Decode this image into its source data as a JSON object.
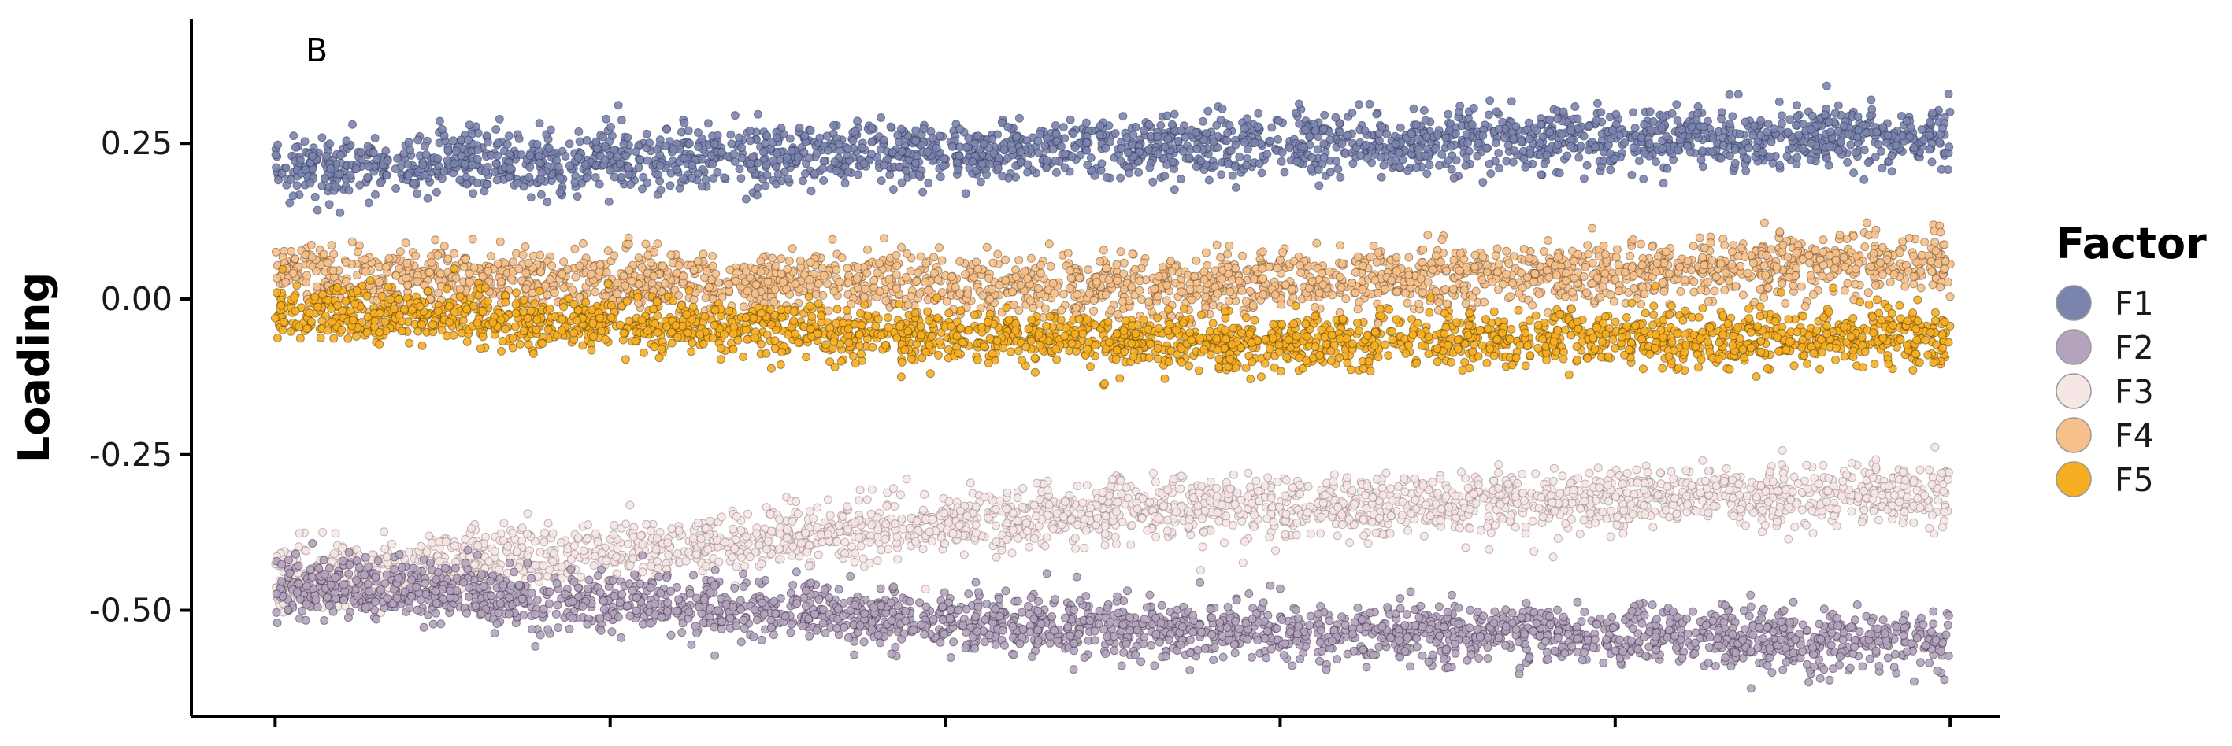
{
  "chart_data": {
    "type": "scatter",
    "panel_tag": "B",
    "ylabel": "Loading",
    "xlabel": "",
    "ylim": [
      -0.67,
      0.45
    ],
    "xlim": [
      -0.05,
      1.03
    ],
    "x_ticks": [
      0,
      0.2,
      0.4,
      0.6,
      0.8,
      1.0
    ],
    "x_tick_labels": [
      "",
      "",
      "",
      "",
      "",
      ""
    ],
    "y_ticks": [
      0.25,
      0.0,
      -0.25,
      -0.5
    ],
    "y_tick_labels": [
      "0.25",
      "0.00",
      "-0.25",
      "-0.50"
    ],
    "legend": {
      "title": "Factor",
      "position": "right",
      "entries": [
        "F1",
        "F2",
        "F3",
        "F4",
        "F5"
      ]
    },
    "series": [
      {
        "name": "F1",
        "color": "#7b84ad",
        "stroke": "#2f3557",
        "x_range": [
          0,
          1
        ],
        "y_start": 0.21,
        "y_mid": 0.245,
        "y_end": 0.26,
        "spread": 0.045
      },
      {
        "name": "F2",
        "color": "#b3a3bd",
        "stroke": "#3f3247",
        "x_range": [
          0,
          1
        ],
        "y_start": -0.46,
        "y_mid": -0.53,
        "y_end": -0.55,
        "spread": 0.045
      },
      {
        "name": "F3",
        "color": "#f7e6e6",
        "stroke": "#8c7f7f",
        "x_range": [
          0,
          1
        ],
        "y_start": -0.45,
        "y_mid": -0.34,
        "y_end": -0.31,
        "spread": 0.045
      },
      {
        "name": "F4",
        "color": "#f6c08a",
        "stroke": "#6b4a2a",
        "x_range": [
          0,
          1
        ],
        "y_start": 0.04,
        "y_mid": 0.02,
        "y_end": 0.06,
        "spread": 0.045
      },
      {
        "name": "F5",
        "color": "#f7ae22",
        "stroke": "#5a3f06",
        "x_range": [
          0,
          1
        ],
        "y_start": -0.02,
        "y_mid": -0.07,
        "y_end": -0.06,
        "spread": 0.04
      }
    ]
  }
}
